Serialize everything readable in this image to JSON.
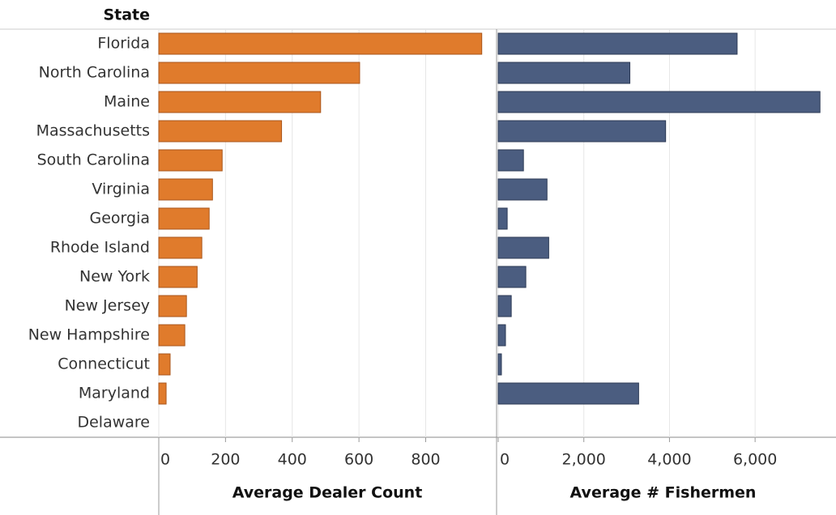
{
  "chart_data": [
    {
      "type": "hbar",
      "y_label": "State",
      "xlabel": "Average Dealer Count",
      "color": "#e07b2c",
      "edge": "#a9561b",
      "categories": [
        "Florida",
        "North Carolina",
        "Maine",
        "Massachusetts",
        "South Carolina",
        "Virginia",
        "Georgia",
        "Rhode Island",
        "New York",
        "New Jersey",
        "New Hampshire",
        "Connecticut",
        "Maryland",
        "Delaware"
      ],
      "values": [
        968,
        602,
        485,
        368,
        190,
        161,
        151,
        129,
        115,
        83,
        78,
        34,
        22,
        null
      ],
      "xlim": [
        0,
        1010
      ],
      "xticks": [
        0,
        200,
        400,
        600,
        800
      ],
      "grid": true
    },
    {
      "type": "hbar",
      "xlabel": "Average # Fishermen",
      "color": "#4b5d80",
      "edge": "#2c3a55",
      "values": [
        5580,
        3075,
        7515,
        3910,
        590,
        1140,
        210,
        1180,
        645,
        305,
        170,
        75,
        3280,
        null
      ],
      "xlim": [
        0,
        7700
      ],
      "xticks": [
        0,
        {
          "value": 2000,
          "label": "2,000"
        },
        {
          "value": 4000,
          "label": "4,000"
        },
        {
          "value": 6000,
          "label": "6,000"
        }
      ],
      "grid": true
    }
  ]
}
